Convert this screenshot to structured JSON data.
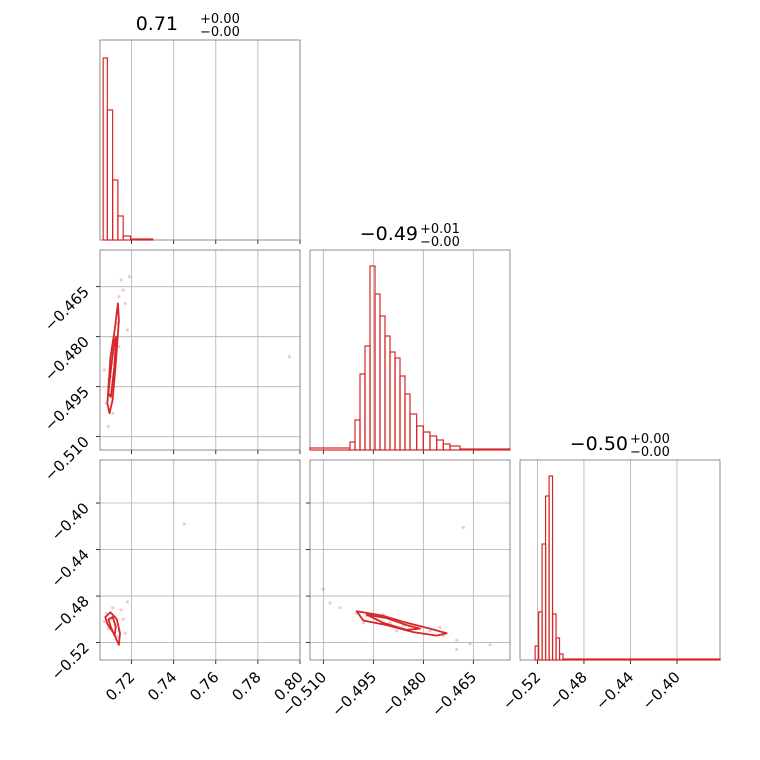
{
  "colors": {
    "series": "#d62728",
    "grid": "#b0b0b0",
    "axis": "#808080"
  },
  "chart_data": [
    {
      "type": "histogram",
      "title": {
        "main": "0.71",
        "upper": "+0.00",
        "lower": "−0.00"
      },
      "xlim": [
        0.705,
        0.8
      ],
      "ylim": [
        0,
        1
      ],
      "grid": true,
      "bins": [
        {
          "x0": 0.7065,
          "x1": 0.7085,
          "value": 0.91
        },
        {
          "x0": 0.7085,
          "x1": 0.711,
          "value": 0.65
        },
        {
          "x0": 0.711,
          "x1": 0.7135,
          "value": 0.3
        },
        {
          "x0": 0.7135,
          "x1": 0.716,
          "value": 0.12
        },
        {
          "x0": 0.716,
          "x1": 0.7195,
          "value": 0.02
        },
        {
          "x0": 0.7195,
          "x1": 0.73,
          "value": 0.005
        }
      ]
    },
    {
      "type": "scatter",
      "xlim": [
        0.705,
        0.8
      ],
      "ylim": [
        -0.514,
        -0.454
      ],
      "yticks": [
        "−0.465",
        "−0.480",
        "−0.495",
        "−0.510"
      ],
      "ytick_values": [
        -0.465,
        -0.48,
        -0.495,
        -0.51
      ],
      "grid": true,
      "points": [
        [
          0.71,
          -0.498
        ],
        [
          0.711,
          -0.488
        ],
        [
          0.712,
          -0.48
        ],
        [
          0.713,
          -0.473
        ],
        [
          0.714,
          -0.468
        ],
        [
          0.709,
          -0.493
        ],
        [
          0.711,
          -0.503
        ],
        [
          0.715,
          -0.463
        ],
        [
          0.717,
          -0.47
        ],
        [
          0.708,
          -0.5
        ],
        [
          0.713,
          -0.476
        ],
        [
          0.712,
          -0.485
        ],
        [
          0.71,
          -0.492
        ],
        [
          0.716,
          -0.466
        ],
        [
          0.718,
          -0.478
        ],
        [
          0.709,
          -0.507
        ],
        [
          0.714,
          -0.483
        ],
        [
          0.711,
          -0.496
        ],
        [
          0.719,
          -0.462
        ],
        [
          0.707,
          -0.49
        ],
        [
          0.795,
          -0.486
        ]
      ],
      "contours": [
        [
          [
            0.7085,
            -0.5
          ],
          [
            0.71,
            -0.486
          ],
          [
            0.712,
            -0.478
          ],
          [
            0.7135,
            -0.47
          ],
          [
            0.714,
            -0.475
          ],
          [
            0.7125,
            -0.488
          ],
          [
            0.711,
            -0.499
          ],
          [
            0.7095,
            -0.503
          ]
        ],
        [
          [
            0.709,
            -0.497
          ],
          [
            0.7105,
            -0.488
          ],
          [
            0.712,
            -0.481
          ],
          [
            0.7128,
            -0.48
          ],
          [
            0.7118,
            -0.489
          ],
          [
            0.7102,
            -0.498
          ]
        ]
      ]
    },
    {
      "type": "histogram",
      "title": {
        "main": "−0.49",
        "upper": "+0.01",
        "lower": "−0.00"
      },
      "xlim": [
        -0.514,
        -0.454
      ],
      "xticks": [
        "−0.510",
        "−0.495",
        "−0.480",
        "−0.465"
      ],
      "xtick_values": [
        -0.51,
        -0.495,
        -0.48,
        -0.465
      ],
      "ylim": [
        0,
        1
      ],
      "grid": true,
      "bins": [
        {
          "x0": -0.514,
          "x1": -0.502,
          "value": 0.01
        },
        {
          "x0": -0.502,
          "x1": -0.5005,
          "value": 0.04
        },
        {
          "x0": -0.5005,
          "x1": -0.499,
          "value": 0.15
        },
        {
          "x0": -0.499,
          "x1": -0.4975,
          "value": 0.38
        },
        {
          "x0": -0.4975,
          "x1": -0.496,
          "value": 0.52
        },
        {
          "x0": -0.496,
          "x1": -0.4945,
          "value": 0.92
        },
        {
          "x0": -0.4945,
          "x1": -0.493,
          "value": 0.78
        },
        {
          "x0": -0.493,
          "x1": -0.4915,
          "value": 0.67
        },
        {
          "x0": -0.4915,
          "x1": -0.49,
          "value": 0.57
        },
        {
          "x0": -0.49,
          "x1": -0.4885,
          "value": 0.49
        },
        {
          "x0": -0.4885,
          "x1": -0.487,
          "value": 0.46
        },
        {
          "x0": -0.487,
          "x1": -0.4855,
          "value": 0.37
        },
        {
          "x0": -0.4855,
          "x1": -0.484,
          "value": 0.28
        },
        {
          "x0": -0.484,
          "x1": -0.482,
          "value": 0.18
        },
        {
          "x0": -0.482,
          "x1": -0.48,
          "value": 0.12
        },
        {
          "x0": -0.48,
          "x1": -0.478,
          "value": 0.09
        },
        {
          "x0": -0.478,
          "x1": -0.476,
          "value": 0.07
        },
        {
          "x0": -0.476,
          "x1": -0.474,
          "value": 0.05
        },
        {
          "x0": -0.474,
          "x1": -0.472,
          "value": 0.03
        },
        {
          "x0": -0.472,
          "x1": -0.469,
          "value": 0.02
        },
        {
          "x0": -0.469,
          "x1": -0.454,
          "value": 0.005
        }
      ]
    },
    {
      "type": "scatter",
      "xlim": [
        0.705,
        0.8
      ],
      "ylim": [
        -0.535,
        -0.363
      ],
      "yticks": [
        "−0.40",
        "−0.44",
        "−0.48",
        "−0.52"
      ],
      "ytick_values": [
        -0.4,
        -0.44,
        -0.48,
        -0.52
      ],
      "grid": true,
      "points": [
        [
          0.71,
          -0.5
        ],
        [
          0.712,
          -0.505
        ],
        [
          0.714,
          -0.51
        ],
        [
          0.708,
          -0.495
        ],
        [
          0.711,
          -0.49
        ],
        [
          0.713,
          -0.515
        ],
        [
          0.716,
          -0.5
        ],
        [
          0.709,
          -0.508
        ],
        [
          0.715,
          -0.492
        ],
        [
          0.718,
          -0.485
        ],
        [
          0.745,
          -0.418
        ],
        [
          0.712,
          -0.498
        ],
        [
          0.717,
          -0.512
        ],
        [
          0.707,
          -0.502
        ]
      ],
      "contours": [
        [
          [
            0.7075,
            -0.498
          ],
          [
            0.71,
            -0.494
          ],
          [
            0.713,
            -0.5
          ],
          [
            0.7145,
            -0.512
          ],
          [
            0.714,
            -0.522
          ],
          [
            0.7115,
            -0.512
          ],
          [
            0.7085,
            -0.504
          ]
        ],
        [
          [
            0.709,
            -0.5
          ],
          [
            0.711,
            -0.498
          ],
          [
            0.7125,
            -0.506
          ],
          [
            0.712,
            -0.514
          ],
          [
            0.71,
            -0.506
          ]
        ]
      ]
    },
    {
      "type": "scatter",
      "xlim": [
        -0.514,
        -0.454
      ],
      "ylim": [
        -0.535,
        -0.363
      ],
      "grid": true,
      "points": [
        [
          -0.51,
          -0.474
        ],
        [
          -0.505,
          -0.49
        ],
        [
          -0.5,
          -0.495
        ],
        [
          -0.497,
          -0.497
        ],
        [
          -0.494,
          -0.5
        ],
        [
          -0.49,
          -0.503
        ],
        [
          -0.486,
          -0.505
        ],
        [
          -0.482,
          -0.508
        ],
        [
          -0.478,
          -0.51
        ],
        [
          -0.474,
          -0.514
        ],
        [
          -0.47,
          -0.518
        ],
        [
          -0.466,
          -0.521
        ],
        [
          -0.492,
          -0.496
        ],
        [
          -0.488,
          -0.51
        ],
        [
          -0.498,
          -0.503
        ],
        [
          -0.475,
          -0.507
        ],
        [
          -0.47,
          -0.526
        ],
        [
          -0.46,
          -0.522
        ],
        [
          -0.508,
          -0.486
        ],
        [
          -0.468,
          -0.421
        ]
      ],
      "contours": [
        [
          [
            -0.5,
            -0.493
          ],
          [
            -0.492,
            -0.497
          ],
          [
            -0.485,
            -0.503
          ],
          [
            -0.478,
            -0.508
          ],
          [
            -0.473,
            -0.512
          ],
          [
            -0.476,
            -0.514
          ],
          [
            -0.483,
            -0.511
          ],
          [
            -0.491,
            -0.505
          ],
          [
            -0.498,
            -0.501
          ]
        ],
        [
          [
            -0.497,
            -0.496
          ],
          [
            -0.491,
            -0.499
          ],
          [
            -0.485,
            -0.505
          ],
          [
            -0.481,
            -0.508
          ],
          [
            -0.485,
            -0.509
          ],
          [
            -0.492,
            -0.503
          ]
        ]
      ]
    },
    {
      "type": "histogram",
      "title": {
        "main": "−0.50",
        "upper": "+0.00",
        "lower": "−0.00"
      },
      "xlim": [
        -0.535,
        -0.363
      ],
      "xticks": [
        "−0.52",
        "−0.48",
        "−0.44",
        "−0.40"
      ],
      "xtick_values": [
        -0.52,
        -0.48,
        -0.44,
        -0.4
      ],
      "ylim": [
        0,
        1
      ],
      "grid": true,
      "bins": [
        {
          "x0": -0.535,
          "x1": -0.522,
          "value": 0.0
        },
        {
          "x0": -0.522,
          "x1": -0.519,
          "value": 0.07
        },
        {
          "x0": -0.519,
          "x1": -0.516,
          "value": 0.24
        },
        {
          "x0": -0.516,
          "x1": -0.513,
          "value": 0.58
        },
        {
          "x0": -0.513,
          "x1": -0.51,
          "value": 0.82
        },
        {
          "x0": -0.51,
          "x1": -0.507,
          "value": 0.92
        },
        {
          "x0": -0.507,
          "x1": -0.504,
          "value": 0.23
        },
        {
          "x0": -0.504,
          "x1": -0.501,
          "value": 0.11
        },
        {
          "x0": -0.501,
          "x1": -0.498,
          "value": 0.03
        },
        {
          "x0": -0.498,
          "x1": -0.363,
          "value": 0.005
        }
      ]
    }
  ],
  "ticks": {
    "x_col1": [
      "0.72",
      "0.74",
      "0.76",
      "0.78",
      "0.80"
    ],
    "x_col1_values": [
      0.72,
      0.74,
      0.76,
      0.78,
      0.8
    ]
  }
}
